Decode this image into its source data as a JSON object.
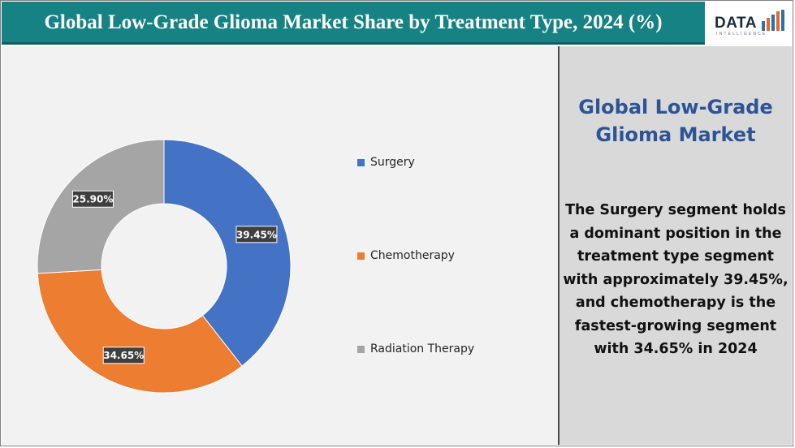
{
  "header": {
    "title": "Global Low-Grade Glioma Market Share by Treatment Type, 2024 (%)"
  },
  "logo": {
    "word": "DATA",
    "sub": "INTELLIGENCE"
  },
  "side": {
    "title": "Global Low-Grade Glioma Market",
    "text": "The Surgery segment holds a dominant position in the treatment type segment with approximately 39.45%, and chemotherapy is the fastest-growing segment with 34.65% in 2024"
  },
  "chart_data": {
    "type": "pie",
    "donut": true,
    "categories": [
      "Surgery",
      "Chemotherapy",
      "Radiation Therapy"
    ],
    "values": [
      39.45,
      34.65,
      25.9
    ],
    "labels": [
      "39.45%",
      "34.65%",
      "25.90%"
    ],
    "colors": [
      "#4472c4",
      "#ed7d31",
      "#a5a5a5"
    ],
    "legend_position": "right"
  }
}
